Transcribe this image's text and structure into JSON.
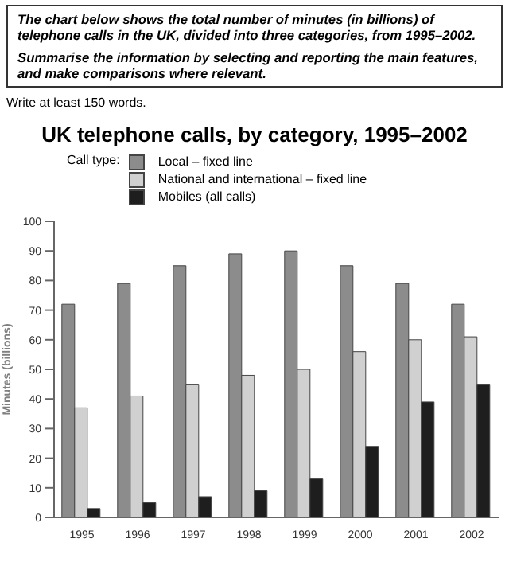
{
  "chart_data": {
    "type": "bar",
    "title": "UK telephone calls, by category, 1995–2002",
    "annotations": [
      "The chart below shows the total number of minutes (in billions) of telephone calls in the UK, divided into three categories, from 1995–2002.",
      "Summarise the information by selecting and reporting the main features, and make comparisons where relevant.",
      "Write at least 150 words."
    ],
    "legend_title": "Call type:",
    "legend": "top left",
    "ylabel": "Minutes (billions)",
    "categories": [
      "1995",
      "1996",
      "1997",
      "1998",
      "1999",
      "2000",
      "2001",
      "2002"
    ],
    "series": [
      {
        "name": "Local – fixed line",
        "color": "#8c8c8c",
        "values": [
          72,
          79,
          85,
          89,
          90,
          85,
          79,
          72
        ]
      },
      {
        "name": "National and international – fixed line",
        "color": "#d0d0d0",
        "values": [
          37,
          41,
          45,
          48,
          50,
          56,
          60,
          61
        ]
      },
      {
        "name": "Mobiles (all calls)",
        "color": "#1e1e1e",
        "values": [
          3,
          5,
          7,
          9,
          13,
          24,
          39,
          45
        ]
      }
    ],
    "ylim": [
      0,
      100
    ],
    "yticks": [
      0,
      10,
      20,
      30,
      40,
      50,
      60,
      70,
      80,
      90,
      100
    ]
  }
}
